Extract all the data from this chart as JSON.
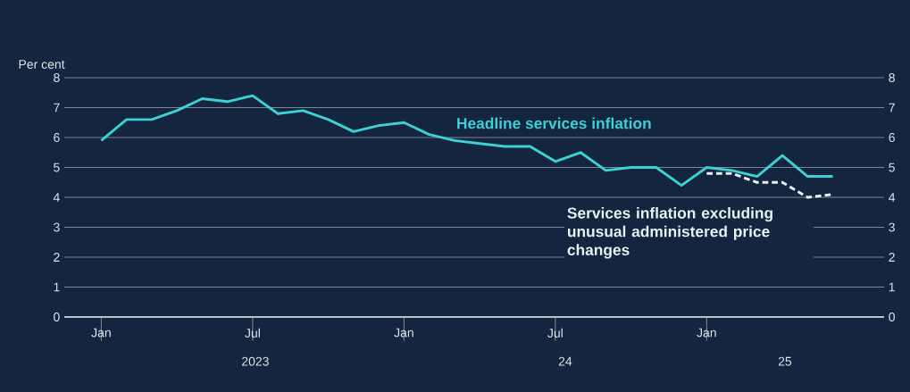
{
  "chart_data": {
    "type": "line",
    "ylabel": "Per cent",
    "x": [
      "2023-01",
      "2023-02",
      "2023-03",
      "2023-04",
      "2023-05",
      "2023-06",
      "2023-07",
      "2023-08",
      "2023-09",
      "2023-10",
      "2023-11",
      "2023-12",
      "2024-01",
      "2024-02",
      "2024-03",
      "2024-04",
      "2024-05",
      "2024-06",
      "2024-07",
      "2024-08",
      "2024-09",
      "2024-10",
      "2024-11",
      "2024-12",
      "2025-01",
      "2025-02",
      "2025-03",
      "2025-04",
      "2025-05",
      "2025-06"
    ],
    "series": [
      {
        "name": "Headline services inflation",
        "color": "#3dd0d4",
        "values": [
          5.9,
          6.6,
          6.6,
          6.9,
          7.3,
          7.2,
          7.4,
          6.8,
          6.9,
          6.6,
          6.2,
          6.4,
          6.5,
          6.1,
          5.9,
          5.8,
          5.7,
          5.7,
          5.2,
          5.5,
          4.9,
          5.0,
          5.0,
          4.4,
          5.0,
          4.9,
          4.7,
          5.4,
          4.7,
          4.7
        ]
      },
      {
        "name": "Services inflation excluding unusual administered price changes",
        "color": "#e6f4f6",
        "line_style": "dashed",
        "x": [
          "2025-01",
          "2025-02",
          "2025-03",
          "2025-04",
          "2025-05",
          "2025-06"
        ],
        "values": [
          4.8,
          4.8,
          4.5,
          4.5,
          4.0,
          4.1
        ]
      }
    ],
    "xlim": [
      "2022-11-17",
      "2025-08-02"
    ],
    "xticks": [
      {
        "value": "2023-01",
        "label": "Jan"
      },
      {
        "value": "2023-07",
        "label": "Jul"
      },
      {
        "value": "2024-01",
        "label": "Jan"
      },
      {
        "value": "2024-07",
        "label": "Jul"
      },
      {
        "value": "2025-01",
        "label": "Jan"
      }
    ],
    "annotations": [
      "2023",
      "24",
      "25"
    ],
    "ylim": [
      0,
      8
    ],
    "yticks": [
      0,
      1,
      2,
      3,
      4,
      5,
      6,
      7,
      8
    ],
    "y2lim": [
      0,
      8
    ],
    "y2ticks": [
      0,
      1,
      2,
      3,
      4,
      5,
      6,
      7,
      8
    ],
    "grid": "y",
    "line_style": "solid"
  }
}
